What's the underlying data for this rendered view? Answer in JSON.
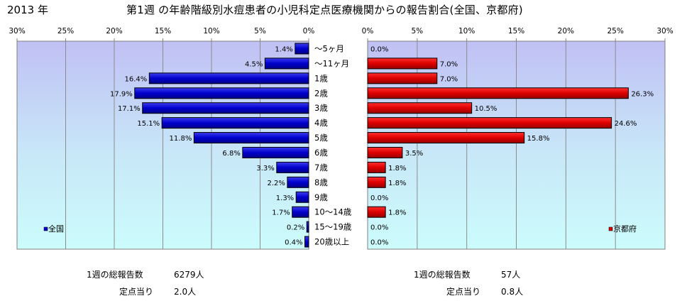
{
  "header": {
    "year": "2013 年",
    "title": "第1週 の年齢階級別水痘患者の小児科定点医療機関からの報告割合(全国、京都府)"
  },
  "chart_data": [
    {
      "type": "bar",
      "orientation": "horizontal",
      "direction": "right-to-left",
      "categories": [
        "～5ヶ月",
        "～11ヶ月",
        "1歳",
        "2歳",
        "3歳",
        "4歳",
        "5歳",
        "6歳",
        "7歳",
        "8歳",
        "9歳",
        "10～14歳",
        "15～19歳",
        "20歳以上"
      ],
      "series": [
        {
          "name": "全国",
          "values": [
            1.4,
            4.5,
            16.4,
            17.9,
            17.1,
            15.1,
            11.8,
            6.8,
            3.3,
            2.2,
            1.3,
            1.7,
            0.2,
            0.4
          ],
          "labels": [
            "1.4%",
            "4.5%",
            "16.4%",
            "17.9%",
            "17.1%",
            "15.1%",
            "11.8%",
            "6.8%",
            "3.3%",
            "2.2%",
            "1.3%",
            "1.7%",
            "0.2%",
            "0.4%"
          ],
          "color": "#0000cc"
        }
      ],
      "xlim": [
        0,
        30
      ],
      "ticks": [
        "0%",
        "5%",
        "10%",
        "15%",
        "20%",
        "25%",
        "30%"
      ],
      "legend": "bottom-left",
      "grid": true
    },
    {
      "type": "bar",
      "orientation": "horizontal",
      "direction": "left-to-right",
      "categories": [
        "～5ヶ月",
        "～11ヶ月",
        "1歳",
        "2歳",
        "3歳",
        "4歳",
        "5歳",
        "6歳",
        "7歳",
        "8歳",
        "9歳",
        "10～14歳",
        "15～19歳",
        "20歳以上"
      ],
      "series": [
        {
          "name": "京都府",
          "values": [
            0.0,
            7.0,
            7.0,
            26.3,
            10.5,
            24.6,
            15.8,
            3.5,
            1.8,
            1.8,
            0.0,
            1.8,
            0.0,
            0.0
          ],
          "labels": [
            "0.0%",
            "7.0%",
            "7.0%",
            "26.3%",
            "10.5%",
            "24.6%",
            "15.8%",
            "3.5%",
            "1.8%",
            "1.8%",
            "0.0%",
            "1.8%",
            "0.0%",
            "0.0%"
          ],
          "color": "#dd0000"
        }
      ],
      "xlim": [
        0,
        30
      ],
      "ticks": [
        "0%",
        "5%",
        "10%",
        "15%",
        "20%",
        "25%",
        "30%"
      ],
      "legend": "bottom-right",
      "grid": true
    }
  ],
  "stats": {
    "national": {
      "total_label": "1週の総報告数",
      "total_value": "6279人",
      "per_label": "定点当り",
      "per_value": "2.0人"
    },
    "kyoto": {
      "total_label": "1週の総報告数",
      "total_value": "57人",
      "per_label": "定点当り",
      "per_value": "0.8人"
    }
  }
}
